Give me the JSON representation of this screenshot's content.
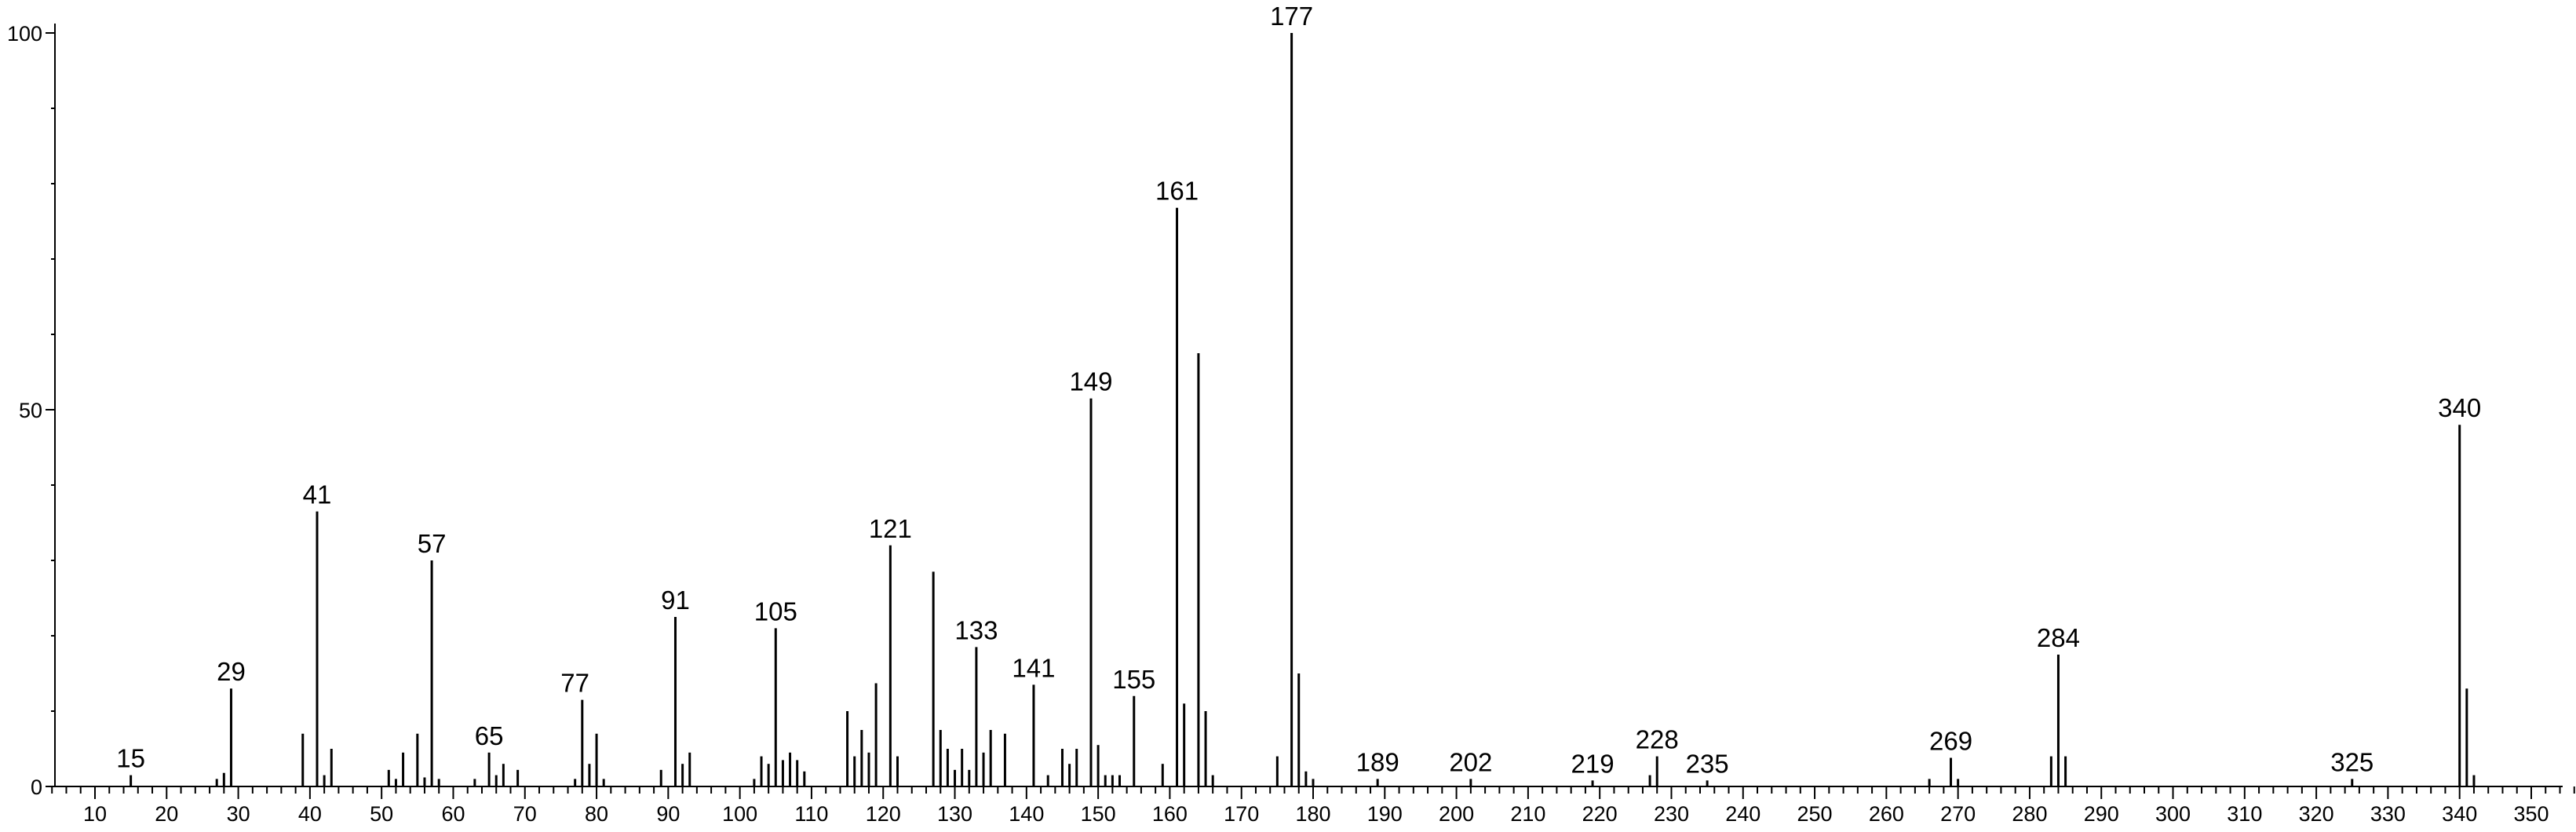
{
  "chart_data": {
    "type": "bar",
    "title": "",
    "xlabel": "",
    "ylabel": "",
    "xlim": [
      2,
      360
    ],
    "ylim": [
      0,
      100
    ],
    "grid": false,
    "bar_color": "#000000",
    "x_ticks": [
      10,
      20,
      30,
      40,
      50,
      60,
      70,
      80,
      90,
      100,
      110,
      120,
      130,
      140,
      150,
      160,
      170,
      180,
      190,
      200,
      210,
      220,
      230,
      240,
      250,
      260,
      270,
      280,
      290,
      300,
      310,
      320,
      330,
      340,
      350
    ],
    "y_ticks": [
      0,
      50,
      100
    ],
    "x": [
      15,
      27,
      28,
      29,
      39,
      41,
      42,
      43,
      51,
      52,
      53,
      55,
      56,
      57,
      58,
      63,
      65,
      66,
      67,
      69,
      77,
      78,
      79,
      80,
      81,
      89,
      91,
      92,
      93,
      102,
      103,
      104,
      105,
      106,
      107,
      108,
      109,
      115,
      116,
      117,
      118,
      119,
      121,
      122,
      127,
      128,
      129,
      130,
      131,
      132,
      133,
      134,
      135,
      137,
      141,
      143,
      145,
      146,
      147,
      149,
      150,
      151,
      152,
      153,
      155,
      159,
      161,
      162,
      164,
      165,
      166,
      175,
      177,
      178,
      179,
      180,
      189,
      202,
      219,
      227,
      228,
      235,
      266,
      269,
      270,
      283,
      284,
      285,
      325,
      340,
      341,
      342
    ],
    "y": [
      1.5,
      1.0,
      1.8,
      13,
      7,
      36.5,
      1.5,
      5,
      2.2,
      1.0,
      4.5,
      7,
      1.2,
      30,
      1.0,
      1.0,
      4.5,
      1.5,
      3,
      2.2,
      1.0,
      11.5,
      3,
      7,
      1.0,
      2.2,
      22.5,
      3,
      4.5,
      1.0,
      4,
      3,
      21,
      3.5,
      4.5,
      3.5,
      2,
      10,
      4,
      7.5,
      4.5,
      13.7,
      32,
      4,
      28.5,
      7.5,
      5,
      2.2,
      5,
      2.2,
      18.5,
      4.5,
      7.5,
      7,
      13.5,
      1.5,
      5,
      3,
      5,
      51.5,
      5.5,
      1.5,
      1.5,
      1.5,
      12,
      3,
      76.8,
      11,
      57.5,
      10,
      1.5,
      4,
      100,
      15,
      2,
      1.0,
      1.0,
      1.0,
      0.8,
      1.5,
      4,
      0.8,
      1.0,
      3.8,
      1.0,
      4,
      17.5,
      4,
      1.0,
      48,
      13,
      1.5
    ],
    "peak_labels": [
      {
        "x": 15,
        "label": "15"
      },
      {
        "x": 29,
        "label": "29"
      },
      {
        "x": 41,
        "label": "41"
      },
      {
        "x": 57,
        "label": "57"
      },
      {
        "x": 65,
        "label": "65"
      },
      {
        "x": 77,
        "label": "77",
        "y": 11.5
      },
      {
        "x": 91,
        "label": "91"
      },
      {
        "x": 105,
        "label": "105"
      },
      {
        "x": 121,
        "label": "121"
      },
      {
        "x": 133,
        "label": "133"
      },
      {
        "x": 141,
        "label": "141"
      },
      {
        "x": 149,
        "label": "149"
      },
      {
        "x": 155,
        "label": "155"
      },
      {
        "x": 161,
        "label": "161"
      },
      {
        "x": 177,
        "label": "177"
      },
      {
        "x": 189,
        "label": "189"
      },
      {
        "x": 202,
        "label": "202"
      },
      {
        "x": 219,
        "label": "219"
      },
      {
        "x": 228,
        "label": "228"
      },
      {
        "x": 235,
        "label": "235"
      },
      {
        "x": 269,
        "label": "269"
      },
      {
        "x": 284,
        "label": "284"
      },
      {
        "x": 325,
        "label": "325"
      },
      {
        "x": 340,
        "label": "340"
      }
    ]
  }
}
